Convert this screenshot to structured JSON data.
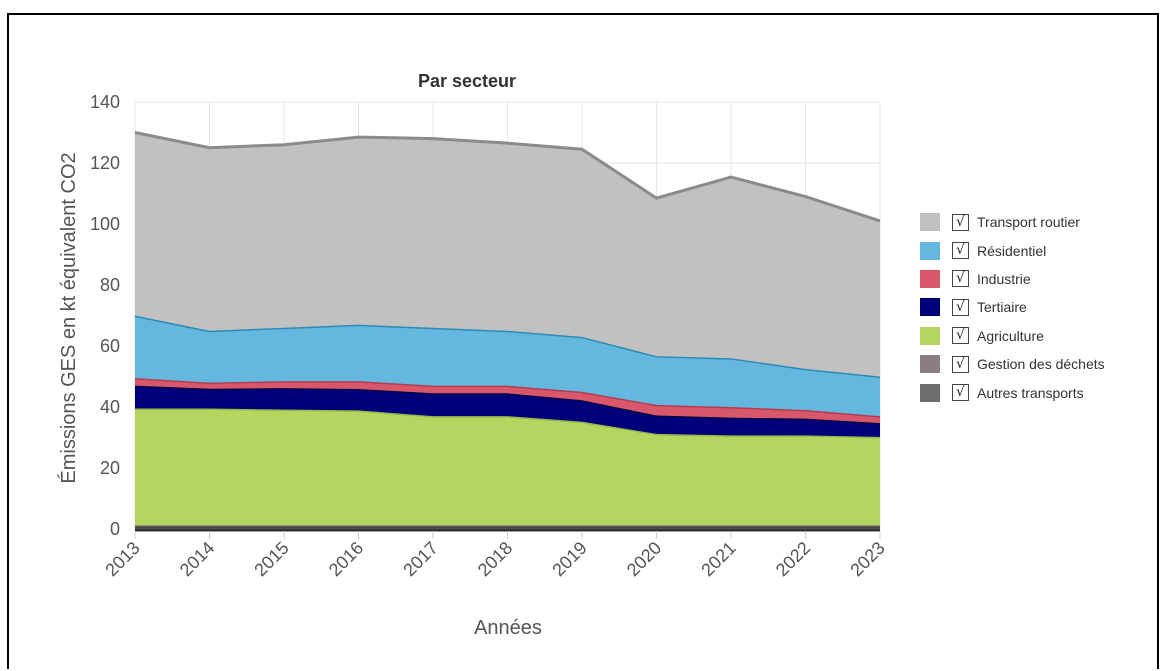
{
  "chart_data": {
    "type": "area",
    "stacked": true,
    "title": "Par secteur",
    "xlabel": "Années",
    "ylabel": "Émissions GES en kt équivalent CO2",
    "ylim": [
      0,
      140
    ],
    "yticks": [
      "0",
      "20",
      "40",
      "60",
      "80",
      "100",
      "120",
      "140"
    ],
    "categories": [
      "2013",
      "2014",
      "2015",
      "2016",
      "2017",
      "2018",
      "2019",
      "2020",
      "2021",
      "2022",
      "2023"
    ],
    "grid": true,
    "legend_position": "right",
    "series": [
      {
        "name": "Autres transports",
        "color": "#6e6e6e",
        "line": "#404040",
        "values": [
          0.8,
          0.8,
          0.8,
          0.8,
          0.8,
          0.8,
          0.8,
          0.8,
          0.8,
          0.8,
          0.8
        ]
      },
      {
        "name": "Gestion des déchets",
        "color": "#8c7f84",
        "line": "#6f6367",
        "values": [
          0.4,
          0.4,
          0.4,
          0.4,
          0.4,
          0.4,
          0.4,
          0.4,
          0.4,
          0.4,
          0.4
        ]
      },
      {
        "name": "Agriculture",
        "color": "#b5d561",
        "line": "#96b84a",
        "values": [
          38.3,
          38.3,
          38.0,
          37.7,
          35.8,
          35.8,
          34.0,
          30.0,
          29.5,
          29.5,
          29.0
        ]
      },
      {
        "name": "Tertiaire",
        "color": "#00007a",
        "line": "#00004a",
        "values": [
          7.5,
          6.5,
          7.0,
          7.0,
          7.5,
          7.5,
          7.0,
          6.0,
          5.8,
          5.5,
          4.5
        ]
      },
      {
        "name": "Industrie",
        "color": "#d9576a",
        "line": "#b33d50",
        "values": [
          2.5,
          2.0,
          2.3,
          2.6,
          2.5,
          2.5,
          2.8,
          3.5,
          3.5,
          2.8,
          2.3
        ]
      },
      {
        "name": "Résidentiel",
        "color": "#64b8df",
        "line": "#2d8ab5",
        "values": [
          20.5,
          17.0,
          17.5,
          18.5,
          19.0,
          18.0,
          18.0,
          16.0,
          16.0,
          13.5,
          13.0
        ]
      },
      {
        "name": "Transport routier",
        "color": "#c2c1c2",
        "line": "#8c8b8c",
        "values": [
          60.0,
          60.0,
          60.0,
          61.5,
          62.0,
          61.5,
          61.5,
          51.8,
          59.4,
          56.5,
          51.0
        ]
      }
    ]
  },
  "legend": [
    {
      "name": "Transport routier",
      "color": "#c2c1c2",
      "checked": "√"
    },
    {
      "name": "Résidentiel",
      "color": "#64b8df",
      "checked": "√"
    },
    {
      "name": "Industrie",
      "color": "#d9576a",
      "checked": "√"
    },
    {
      "name": "Tertiaire",
      "color": "#00007a",
      "checked": "√"
    },
    {
      "name": "Agriculture",
      "color": "#b5d561",
      "checked": "√"
    },
    {
      "name": "Gestion des déchets",
      "color": "#8c7f84",
      "checked": "√"
    },
    {
      "name": "Autres transports",
      "color": "#6e6e6e",
      "checked": "√"
    }
  ]
}
